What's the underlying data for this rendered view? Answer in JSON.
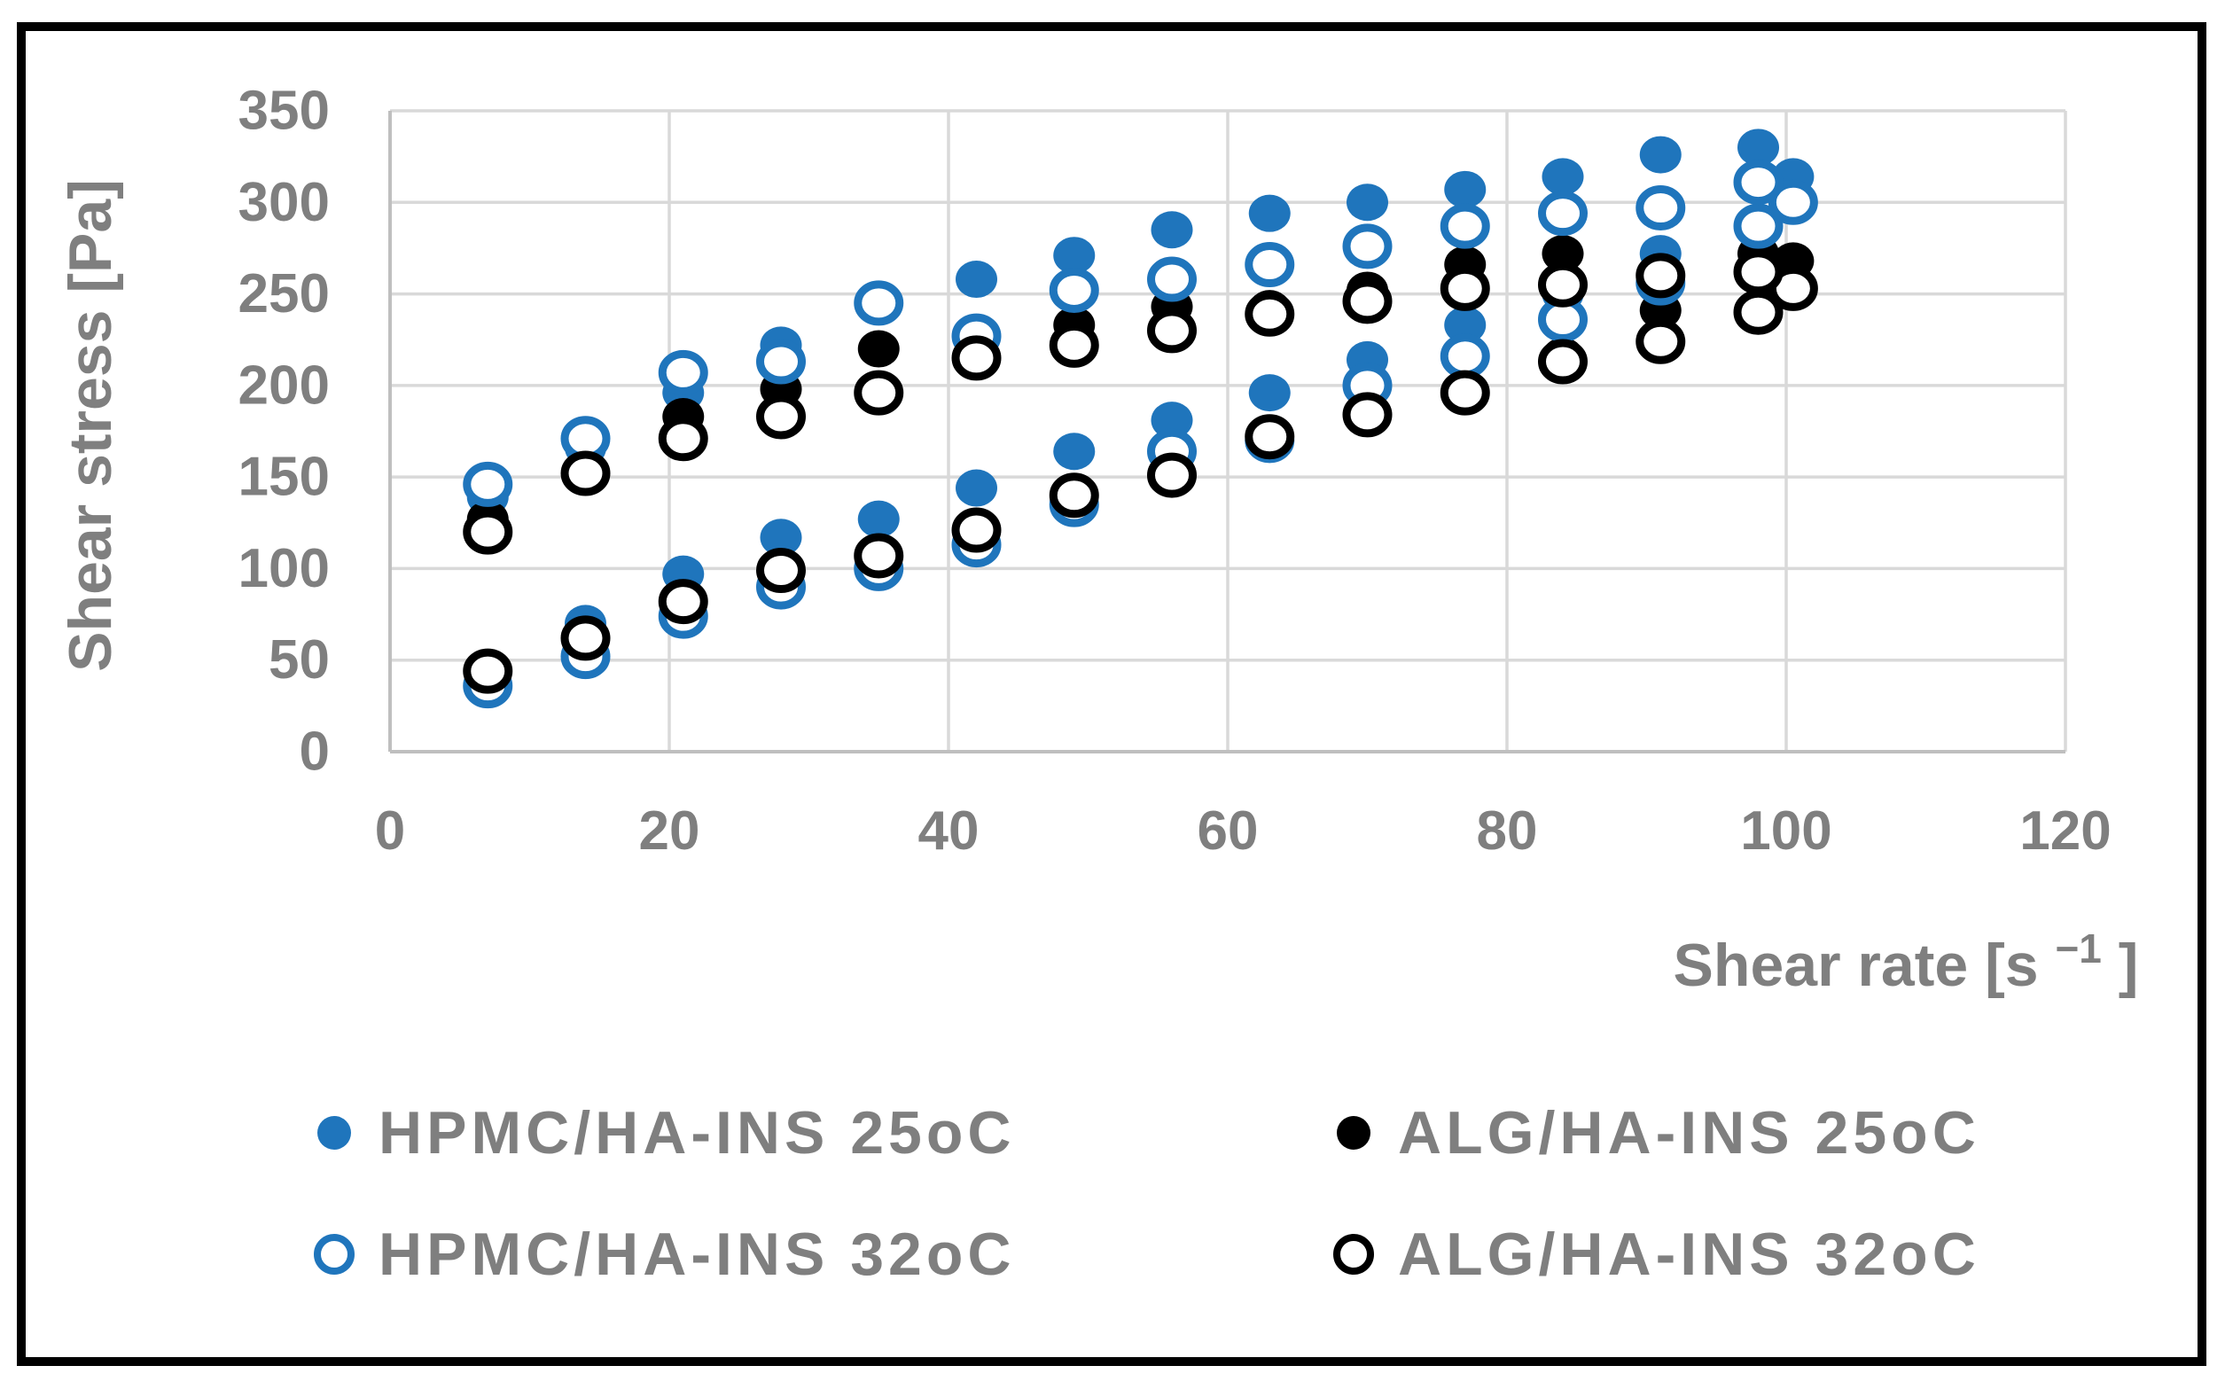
{
  "figure": {
    "background": "#FFFFFF",
    "frame_color": "#000000"
  },
  "chart_data": {
    "type": "scatter",
    "title": "",
    "xlabel": "Shear rate [s⁻¹]",
    "xlabel_parts": {
      "main": "Shear rate [s",
      "sup": "−1",
      "end": "]"
    },
    "ylabel": "Shear stress [Pa]",
    "xlim": [
      0,
      120
    ],
    "ylim": [
      0,
      350
    ],
    "xticks": [
      0,
      20,
      40,
      60,
      80,
      100,
      120
    ],
    "yticks": [
      0,
      50,
      100,
      150,
      200,
      250,
      300,
      350
    ],
    "grid": true,
    "legend_position": "bottom-two-columns",
    "axis_text_color": "#7F7F7F",
    "gridline_color": "#D9D9D9",
    "axis_line_color": "#BFBFBF",
    "note": "Each series is an up-ramp / down-ramp hysteresis loop; points listed up-ramp (7 to 98), peak (100.5), then down-ramp (98 back to 7).",
    "series": [
      {
        "name": "HPMC/HA-INS 25oC",
        "marker": "filled-circle",
        "color": "#1F75BC",
        "points": [
          [
            7,
            34
          ],
          [
            14,
            70
          ],
          [
            21,
            97
          ],
          [
            28,
            117
          ],
          [
            35,
            127
          ],
          [
            42,
            144
          ],
          [
            49,
            164
          ],
          [
            56,
            181
          ],
          [
            63,
            196
          ],
          [
            70,
            214
          ],
          [
            77,
            233
          ],
          [
            84,
            250
          ],
          [
            91,
            272
          ],
          [
            98,
            289
          ],
          [
            100.5,
            314
          ],
          [
            98,
            330
          ],
          [
            91,
            326
          ],
          [
            84,
            314
          ],
          [
            77,
            307
          ],
          [
            70,
            300
          ],
          [
            63,
            294
          ],
          [
            56,
            285
          ],
          [
            49,
            271
          ],
          [
            42,
            258
          ],
          [
            35,
            243
          ],
          [
            28,
            222
          ],
          [
            21,
            196
          ],
          [
            14,
            166
          ],
          [
            7,
            139
          ]
        ]
      },
      {
        "name": "ALG/HA-INS 25oC",
        "marker": "filled-circle",
        "color": "#000000",
        "points": [
          [
            7,
            46
          ],
          [
            14,
            64
          ],
          [
            21,
            84
          ],
          [
            28,
            100
          ],
          [
            35,
            109
          ],
          [
            42,
            123
          ],
          [
            49,
            142
          ],
          [
            56,
            153
          ],
          [
            63,
            174
          ],
          [
            70,
            186
          ],
          [
            77,
            198
          ],
          [
            84,
            216
          ],
          [
            91,
            241
          ],
          [
            98,
            242
          ],
          [
            100.5,
            268
          ],
          [
            98,
            272
          ],
          [
            91,
            262
          ],
          [
            84,
            272
          ],
          [
            77,
            266
          ],
          [
            70,
            252
          ],
          [
            63,
            242
          ],
          [
            56,
            243
          ],
          [
            49,
            233
          ],
          [
            42,
            222
          ],
          [
            35,
            220
          ],
          [
            28,
            198
          ],
          [
            21,
            183
          ],
          [
            14,
            155
          ],
          [
            7,
            127
          ]
        ]
      },
      {
        "name": "HPMC/HA-INS 32oC",
        "marker": "open-circle",
        "color": "#1F75BC",
        "points": [
          [
            7,
            36
          ],
          [
            14,
            52
          ],
          [
            21,
            74
          ],
          [
            28,
            90
          ],
          [
            35,
            100
          ],
          [
            42,
            113
          ],
          [
            49,
            135
          ],
          [
            56,
            164
          ],
          [
            63,
            170
          ],
          [
            70,
            200
          ],
          [
            77,
            216
          ],
          [
            84,
            236
          ],
          [
            91,
            256
          ],
          [
            98,
            287
          ],
          [
            100.5,
            300
          ],
          [
            98,
            311
          ],
          [
            91,
            297
          ],
          [
            84,
            294
          ],
          [
            77,
            287
          ],
          [
            70,
            276
          ],
          [
            63,
            266
          ],
          [
            56,
            258
          ],
          [
            49,
            252
          ],
          [
            42,
            227
          ],
          [
            35,
            245
          ],
          [
            28,
            213
          ],
          [
            21,
            207
          ],
          [
            14,
            171
          ],
          [
            7,
            146
          ]
        ]
      },
      {
        "name": "ALG/HA-INS 32oC",
        "marker": "open-circle",
        "color": "#000000",
        "points": [
          [
            7,
            44
          ],
          [
            14,
            62
          ],
          [
            21,
            82
          ],
          [
            28,
            99
          ],
          [
            35,
            107
          ],
          [
            42,
            121
          ],
          [
            49,
            140
          ],
          [
            56,
            151
          ],
          [
            63,
            172
          ],
          [
            70,
            184
          ],
          [
            77,
            196
          ],
          [
            84,
            213
          ],
          [
            91,
            224
          ],
          [
            98,
            240
          ],
          [
            100.5,
            253
          ],
          [
            98,
            262
          ],
          [
            91,
            260
          ],
          [
            84,
            255
          ],
          [
            77,
            253
          ],
          [
            70,
            246
          ],
          [
            63,
            239
          ],
          [
            56,
            230
          ],
          [
            49,
            222
          ],
          [
            42,
            215
          ],
          [
            35,
            196
          ],
          [
            28,
            183
          ],
          [
            21,
            171
          ],
          [
            14,
            152
          ],
          [
            7,
            120
          ]
        ]
      }
    ],
    "legend": [
      {
        "label": "HPMC/HA-INS 25oC",
        "marker": "filled-circle",
        "color": "#1F75BC"
      },
      {
        "label": "ALG/HA-INS 25oC",
        "marker": "filled-circle",
        "color": "#000000"
      },
      {
        "label": "HPMC/HA-INS 32oC",
        "marker": "open-circle",
        "color": "#1F75BC"
      },
      {
        "label": "ALG/HA-INS 32oC",
        "marker": "open-circle",
        "color": "#000000"
      }
    ]
  }
}
